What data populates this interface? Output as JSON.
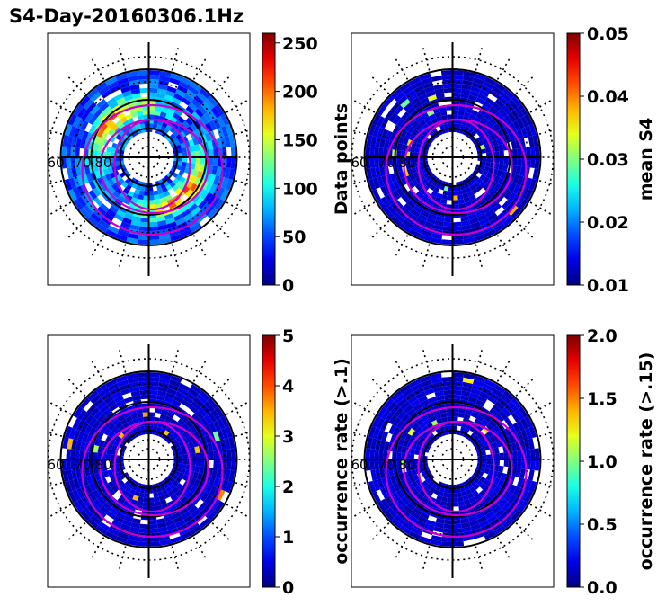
{
  "title": "S4-Day-20160306.1Hz",
  "chart_data": [
    {
      "type": "heatmap",
      "projection": "polar",
      "panel": "top-left",
      "colormap": "jet",
      "colorbar": {
        "label": "Data points",
        "min": 0,
        "max": 260,
        "ticks": [
          0,
          50,
          100,
          150,
          200,
          250
        ]
      },
      "ring_labels": [
        "60",
        "70",
        "80"
      ],
      "ovals": 3,
      "intensity": "high"
    },
    {
      "type": "heatmap",
      "projection": "polar",
      "panel": "top-right",
      "colormap": "jet",
      "colorbar": {
        "label": "mean S4",
        "min": 0.01,
        "max": 0.05,
        "ticks": [
          "0.01",
          "0.02",
          "0.03",
          "0.04",
          "0.05"
        ]
      },
      "ring_labels": [
        "60",
        "70",
        "80"
      ],
      "ovals": 3,
      "intensity": "low"
    },
    {
      "type": "heatmap",
      "projection": "polar",
      "panel": "bottom-left",
      "colormap": "jet",
      "colorbar": {
        "label": "occurrence rate (>.1)",
        "min": 0,
        "max": 5,
        "ticks": [
          "0",
          "1",
          "2",
          "3",
          "4",
          "5"
        ]
      },
      "ring_labels": [
        "60",
        "70",
        "80"
      ],
      "ovals": 3,
      "intensity": "low"
    },
    {
      "type": "heatmap",
      "projection": "polar",
      "panel": "bottom-right",
      "colormap": "jet",
      "colorbar": {
        "label": "occurrence rate (>.15)",
        "min": 0.0,
        "max": 2.0,
        "ticks": [
          "0.0",
          "0.5",
          "1.0",
          "1.5",
          "2.0"
        ]
      },
      "ring_labels": [
        "60",
        "70",
        "80"
      ],
      "ovals": 3,
      "intensity": "low"
    }
  ]
}
